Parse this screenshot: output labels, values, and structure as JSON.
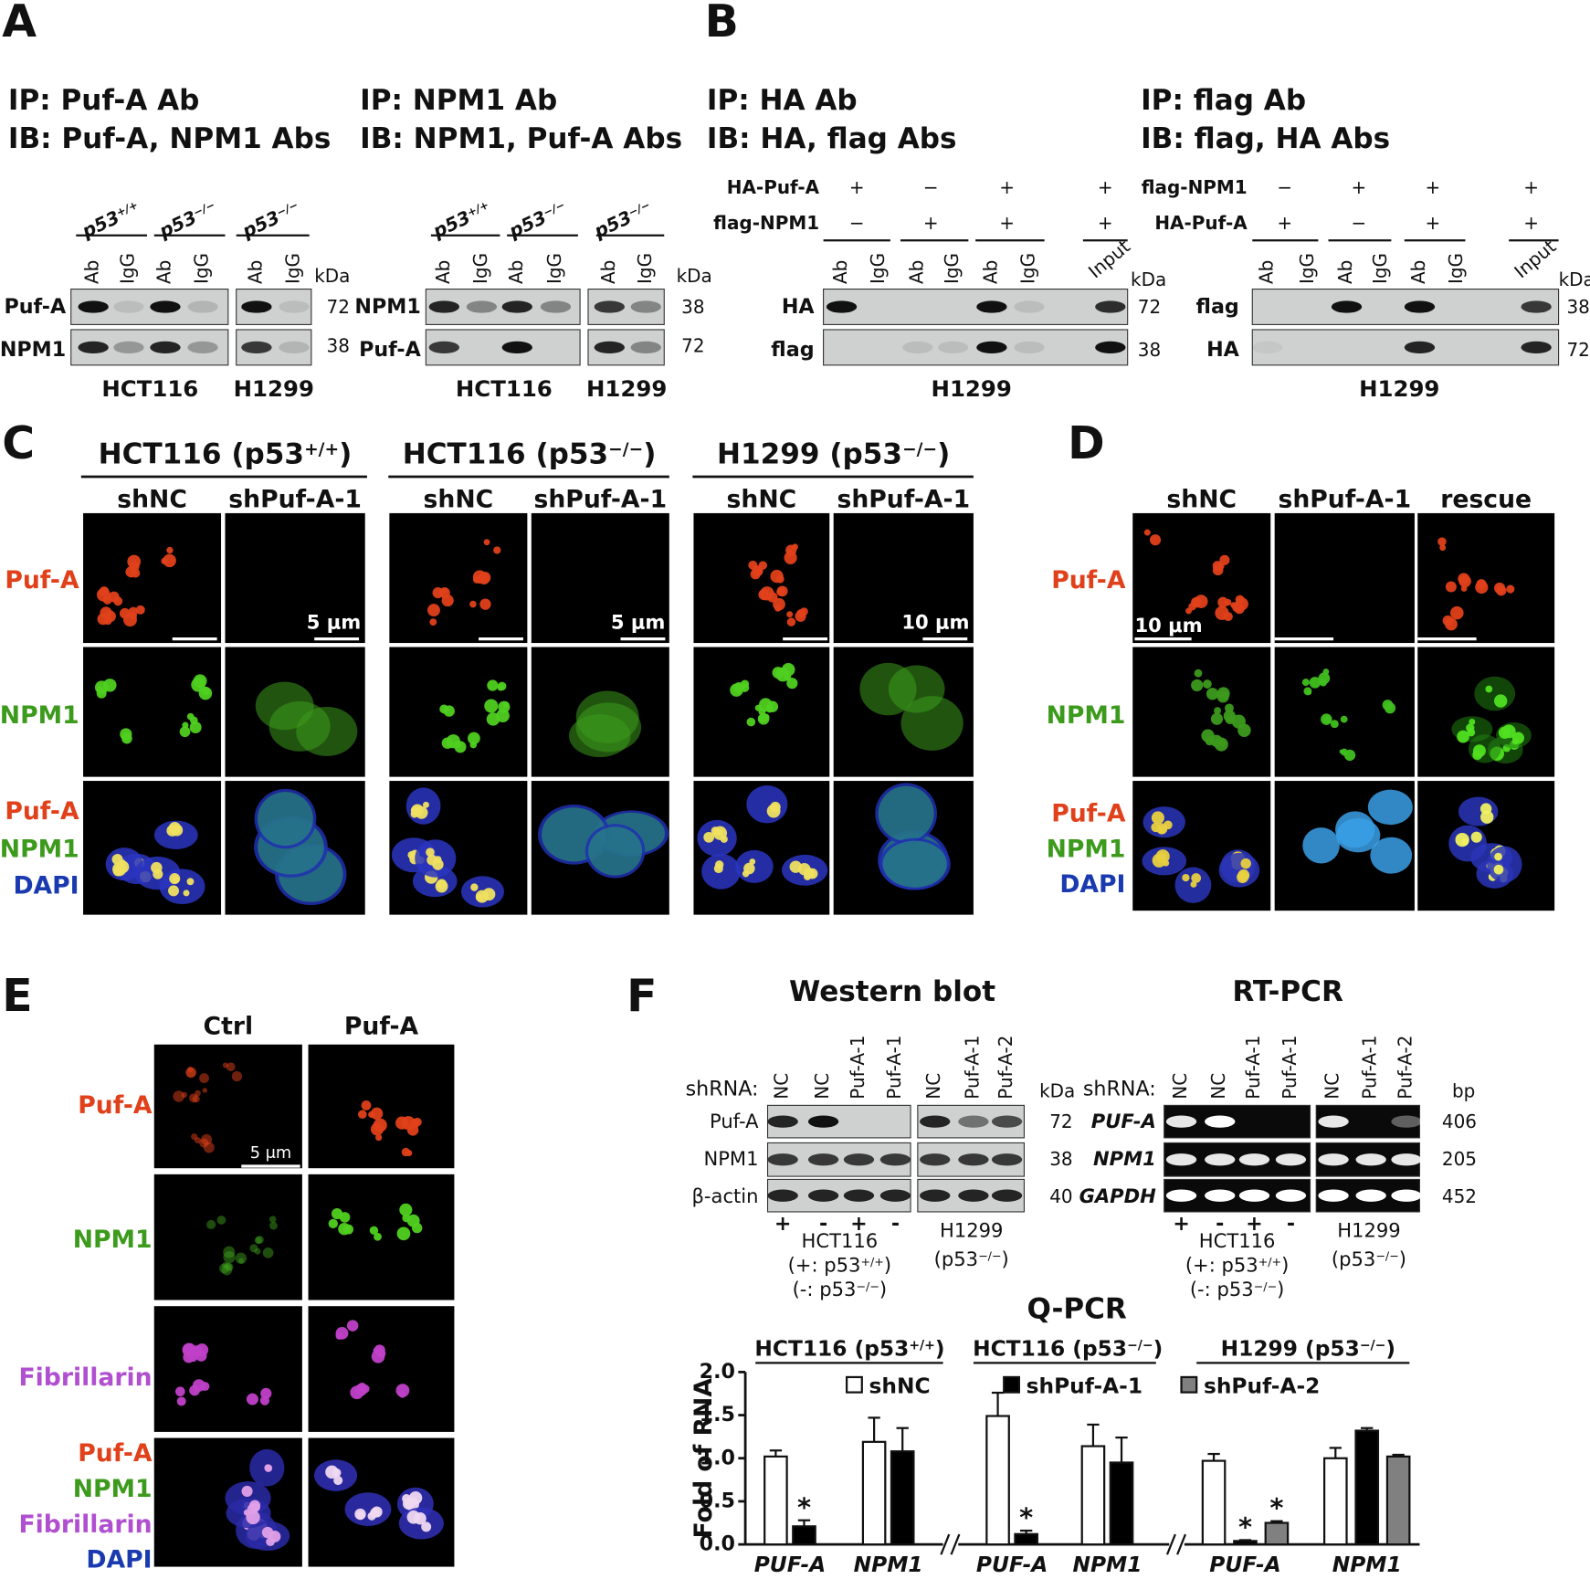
{
  "panels": {
    "A": {
      "label": "A",
      "blots": [
        {
          "ip": "IP: Puf-A Ab",
          "ib": "IB: Puf-A, NPM1 Abs",
          "groups": [
            {
              "base": "p53",
              "sup": "+/+"
            },
            {
              "base": "p53",
              "sup": "−/−"
            },
            {
              "base": "p53",
              "sup": "−/−"
            }
          ],
          "lanes": [
            "Ab",
            "IgG",
            "Ab",
            "IgG",
            "Ab",
            "IgG"
          ],
          "unit": "kDa",
          "rows": [
            {
              "name": "Puf-A",
              "size": 72
            },
            {
              "name": "NPM1",
              "size": 38
            }
          ],
          "cell_lines": [
            "HCT116",
            "H1299"
          ]
        },
        {
          "ip": "IP: NPM1 Ab",
          "ib": "IB: NPM1, Puf-A Abs",
          "groups": [
            {
              "base": "p53",
              "sup": "+/+"
            },
            {
              "base": "p53",
              "sup": "−/−"
            },
            {
              "base": "p53",
              "sup": "−/−"
            }
          ],
          "lanes": [
            "Ab",
            "IgG",
            "Ab",
            "IgG",
            "Ab",
            "IgG"
          ],
          "unit": "kDa",
          "rows": [
            {
              "name": "NPM1",
              "size": 38
            },
            {
              "name": "Puf-A",
              "size": 72
            }
          ],
          "cell_lines": [
            "HCT116",
            "H1299"
          ]
        }
      ]
    },
    "B": {
      "label": "B",
      "blots": [
        {
          "ip": "IP: HA Ab",
          "ib": "IB: HA, flag Abs",
          "conditions": [
            {
              "name": "HA-Puf-A",
              "signs": [
                "+",
                "−",
                "+",
                "+"
              ]
            },
            {
              "name": "flag-NPM1",
              "signs": [
                "−",
                "+",
                "+",
                "+"
              ]
            }
          ],
          "lanes": [
            "Ab",
            "IgG",
            "Ab",
            "IgG",
            "Ab",
            "IgG",
            "Input"
          ],
          "unit": "kDa",
          "rows": [
            {
              "name": "HA",
              "size": 72
            },
            {
              "name": "flag",
              "size": 38
            }
          ],
          "cell_line": "H1299"
        },
        {
          "ip": "IP: flag Ab",
          "ib": "IB: flag, HA Abs",
          "conditions": [
            {
              "name": "flag-NPM1",
              "signs": [
                "−",
                "+",
                "+",
                "+"
              ]
            },
            {
              "name": "HA-Puf-A",
              "signs": [
                "+",
                "−",
                "+",
                "+"
              ]
            }
          ],
          "lanes": [
            "Ab",
            "IgG",
            "Ab",
            "IgG",
            "Ab",
            "IgG",
            "Input"
          ],
          "unit": "kDa",
          "rows": [
            {
              "name": "flag",
              "size": 38
            },
            {
              "name": "HA",
              "size": 72
            }
          ],
          "cell_line": "H1299"
        }
      ]
    },
    "C": {
      "label": "C",
      "headers": [
        {
          "base": "HCT116 (p53",
          "sup": "+/+",
          "tail": ")"
        },
        {
          "base": "HCT116 (p53",
          "sup": "−/−",
          "tail": ")"
        },
        {
          "base": "H1299 (p53",
          "sup": "−/−",
          "tail": ")"
        }
      ],
      "columns": [
        "shNC",
        "shPuf-A-1"
      ],
      "rows": [
        "Puf-A",
        "NPM1"
      ],
      "merge": [
        "Puf-A",
        "NPM1",
        "DAPI"
      ],
      "scale_bars": [
        "5 μm",
        "5 μm",
        "10 μm"
      ]
    },
    "D": {
      "label": "D",
      "columns": [
        "shNC",
        "shPuf-A-1",
        "rescue"
      ],
      "rows": [
        "Puf-A",
        "NPM1"
      ],
      "merge": [
        "Puf-A",
        "NPM1",
        "DAPI"
      ],
      "scale_bar": "10 μm"
    },
    "E": {
      "label": "E",
      "columns": [
        "Ctrl",
        "Puf-A"
      ],
      "rows": [
        "Puf-A",
        "NPM1",
        "Fibrillarin"
      ],
      "merge": [
        "Puf-A",
        "NPM1",
        "Fibrillarin",
        "DAPI"
      ],
      "scale_bar": "5 μm"
    },
    "F": {
      "label": "F",
      "western": {
        "title": "Western blot",
        "row_label": "shRNA:",
        "lanes": [
          "NC",
          "NC",
          "Puf-A-1",
          "Puf-A-1",
          "NC",
          "Puf-A-1",
          "Puf-A-2"
        ],
        "unit": "kDa",
        "rows": [
          {
            "name": "Puf-A",
            "size": 72
          },
          {
            "name": "NPM1",
            "size": 38
          },
          {
            "name": "β-actin",
            "size": 40
          }
        ],
        "signs": [
          "+",
          "-",
          "+",
          "-"
        ],
        "hct116": [
          "HCT116",
          {
            "base": "(+: p53",
            "sup": "+/+",
            "tail": ")"
          },
          {
            "base": "(-: p53",
            "sup": "−/−",
            "tail": ")"
          }
        ],
        "h1299": [
          "H1299",
          {
            "base": "(p53",
            "sup": "−/−",
            "tail": ")"
          }
        ]
      },
      "rtpcr": {
        "title": "RT-PCR",
        "row_label": "shRNA:",
        "lanes": [
          "NC",
          "NC",
          "Puf-A-1",
          "Puf-A-1",
          "NC",
          "Puf-A-1",
          "Puf-A-2"
        ],
        "unit": "bp",
        "rows": [
          {
            "name": "PUF-A",
            "size": 406
          },
          {
            "name": "NPM1",
            "size": 205
          },
          {
            "name": "GAPDH",
            "size": 452
          }
        ],
        "signs": [
          "+",
          "-",
          "+",
          "-"
        ],
        "hct116": [
          "HCT116",
          {
            "base": "(+: p53",
            "sup": "+/+",
            "tail": ")"
          },
          {
            "base": "(-: p53",
            "sup": "−/−",
            "tail": ")"
          }
        ],
        "h1299": [
          "H1299",
          {
            "base": "(p53",
            "sup": "−/−",
            "tail": ")"
          }
        ]
      }
    }
  },
  "chart_data": {
    "type": "bar",
    "title": "Q-PCR",
    "groups": [
      {
        "base": "HCT116 (p53",
        "sup": "+/+",
        "tail": ")"
      },
      {
        "base": "HCT116 (p53",
        "sup": "−/−",
        "tail": ")"
      },
      {
        "base": "H1299 (p53",
        "sup": "−/−",
        "tail": ")"
      }
    ],
    "ylabel": "Fold of RNA",
    "categories": [
      "PUF-A",
      "NPM1",
      "PUF-A",
      "NPM1",
      "PUF-A",
      "NPM1"
    ],
    "series": [
      {
        "name": "shNC",
        "color": "#ffffff",
        "values": [
          1.02,
          1.19,
          1.49,
          1.14,
          0.97,
          1.0
        ],
        "errors": [
          0.07,
          0.28,
          0.27,
          0.25,
          0.08,
          0.12
        ],
        "significance": [
          null,
          null,
          null,
          null,
          null,
          null
        ]
      },
      {
        "name": "shPuf-A-1",
        "color": "#000000",
        "values": [
          0.21,
          1.08,
          0.12,
          0.95,
          0.04,
          1.32
        ],
        "errors": [
          0.07,
          0.27,
          0.04,
          0.29,
          0.01,
          0.03
        ],
        "significance": [
          "*",
          null,
          "*",
          null,
          "*",
          null
        ]
      },
      {
        "name": "shPuf-A-2",
        "color": "#808080",
        "values": [
          null,
          null,
          null,
          null,
          0.25,
          1.02
        ],
        "errors": [
          null,
          null,
          null,
          null,
          0.02,
          0.02
        ],
        "significance": [
          null,
          null,
          null,
          null,
          "*",
          null
        ]
      }
    ],
    "ylim": [
      0,
      2
    ],
    "yticks": [
      {
        "value": 0,
        "label": "0.0"
      },
      {
        "value": 0.5,
        "label": "0.5"
      },
      {
        "value": 1,
        "label": "1.0"
      },
      {
        "value": 1.5,
        "label": "1.5"
      },
      {
        "value": 2,
        "label": "2.0"
      }
    ]
  }
}
